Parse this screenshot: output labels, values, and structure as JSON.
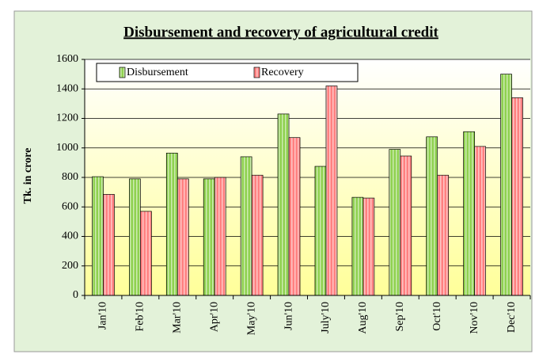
{
  "chart_data": {
    "type": "bar",
    "title": "Disbursement and recovery of agricultural credit",
    "y_label": "Tk. in crore",
    "categories": [
      "Jan'10",
      "Feb'10",
      "Mar'10",
      "Apr'10",
      "May'10",
      "Jun'10",
      "July'10",
      "Aug'10",
      "Sep'10",
      "Oct'10",
      "Nov'10",
      "Dec'10"
    ],
    "series": [
      {
        "name": "Disbursement",
        "color": "#8fd14f",
        "values": [
          805,
          790,
          965,
          790,
          940,
          1230,
          875,
          665,
          990,
          1075,
          1110,
          1500
        ]
      },
      {
        "name": "Recovery",
        "color": "#ff8080",
        "values": [
          685,
          570,
          790,
          800,
          815,
          1070,
          1420,
          660,
          945,
          815,
          1010,
          1340
        ]
      }
    ],
    "ylim": [
      0,
      1600
    ],
    "yticks": [
      0,
      200,
      400,
      600,
      800,
      1000,
      1200,
      1400,
      1600
    ],
    "grid": true
  }
}
